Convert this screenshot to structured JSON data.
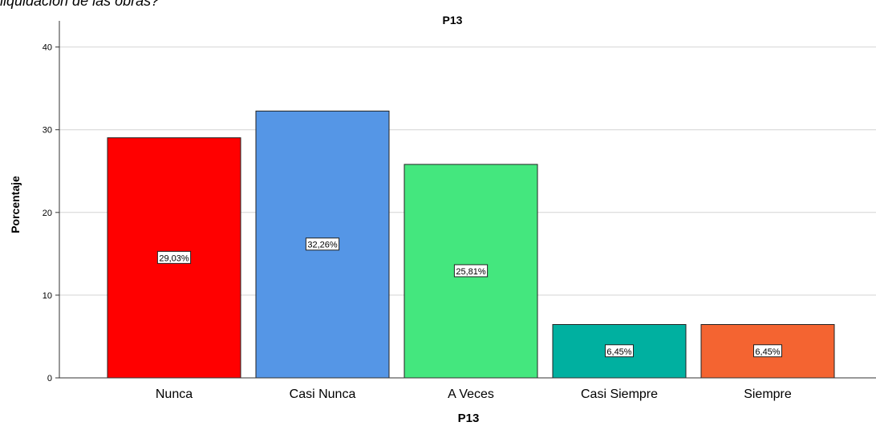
{
  "caption": "liquidación de las obras?",
  "chart_data": {
    "type": "bar",
    "title": "P13",
    "xlabel": "P13",
    "ylabel": "Porcentaje",
    "ylim": [
      0,
      42
    ],
    "yticks": [
      0,
      10,
      20,
      30,
      40
    ],
    "grid": true,
    "categories": [
      "Nunca",
      "Casi Nunca",
      "A Veces",
      "Casi Siempre",
      "Siempre"
    ],
    "values": [
      29.03,
      32.26,
      25.81,
      6.45,
      6.45
    ],
    "data_labels": [
      "29,03%",
      "32,26%",
      "25,81%",
      "6,45%",
      "6,45%"
    ],
    "colors": [
      "#ff0000",
      "#5596e6",
      "#44e77e",
      "#00b0a0",
      "#f46431"
    ]
  }
}
